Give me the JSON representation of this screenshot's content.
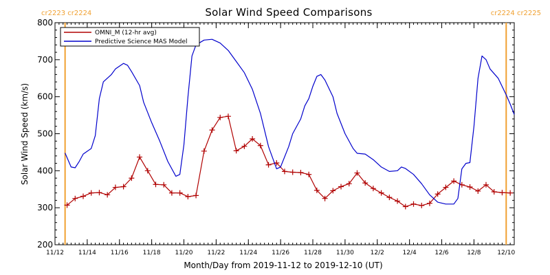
{
  "chart_data": {
    "type": "line",
    "title": "Solar Wind Speed Comparisons",
    "xlabel": "Month/Day from 2019-11-12 to 2019-12-10 (UT)",
    "ylabel": "Solar Wind Speed (km/s)",
    "x_unit": "date",
    "xlim": [
      "2019-11-12",
      "2019-12-10T12:00"
    ],
    "ylim": [
      200,
      800
    ],
    "x_ticks": [
      {
        "label": "11/12",
        "date": "2019-11-12"
      },
      {
        "label": "11/14",
        "date": "2019-11-14"
      },
      {
        "label": "11/16",
        "date": "2019-11-16"
      },
      {
        "label": "11/18",
        "date": "2019-11-18"
      },
      {
        "label": "11/20",
        "date": "2019-11-20"
      },
      {
        "label": "11/22",
        "date": "2019-11-22"
      },
      {
        "label": "11/24",
        "date": "2019-11-24"
      },
      {
        "label": "11/26",
        "date": "2019-11-26"
      },
      {
        "label": "11/28",
        "date": "2019-11-28"
      },
      {
        "label": "11/30",
        "date": "2019-11-30"
      },
      {
        "label": "12/2",
        "date": "2019-12-02"
      },
      {
        "label": "12/4",
        "date": "2019-12-04"
      },
      {
        "label": "12/6",
        "date": "2019-12-06"
      },
      {
        "label": "12/8",
        "date": "2019-12-08"
      },
      {
        "label": "12/10",
        "date": "2019-12-10"
      }
    ],
    "y_ticks": [
      200,
      300,
      400,
      500,
      600,
      700,
      800
    ],
    "grid": false,
    "legend_position": "top-left",
    "markers": [
      {
        "label": "cr2223 cr2224",
        "date": "2019-11-12T15:00",
        "color": "#f0a030",
        "label_side": "left"
      },
      {
        "label": "cr2224 cr2225",
        "date": "2019-12-10T00:00",
        "color": "#f0a030",
        "label_side": "right"
      }
    ],
    "series": [
      {
        "name": "OMNI_M (12-hr avg)",
        "color": "#b00000",
        "marker": "+",
        "points": [
          [
            "2019-11-12T18:00",
            307
          ],
          [
            "2019-11-13T06:00",
            325
          ],
          [
            "2019-11-13T18:00",
            331
          ],
          [
            "2019-11-14T06:00",
            340
          ],
          [
            "2019-11-14T18:00",
            341
          ],
          [
            "2019-11-15T06:00",
            335
          ],
          [
            "2019-11-15T18:00",
            355
          ],
          [
            "2019-11-16T06:00",
            357
          ],
          [
            "2019-11-16T18:00",
            380
          ],
          [
            "2019-11-17T06:00",
            437
          ],
          [
            "2019-11-17T18:00",
            400
          ],
          [
            "2019-11-18T06:00",
            363
          ],
          [
            "2019-11-18T18:00",
            362
          ],
          [
            "2019-11-19T06:00",
            340
          ],
          [
            "2019-11-19T18:00",
            340
          ],
          [
            "2019-11-20T06:00",
            330
          ],
          [
            "2019-11-20T18:00",
            333
          ],
          [
            "2019-11-21T06:00",
            453
          ],
          [
            "2019-11-21T18:00",
            510
          ],
          [
            "2019-11-22T06:00",
            544
          ],
          [
            "2019-11-22T18:00",
            547
          ],
          [
            "2019-11-23T06:00",
            454
          ],
          [
            "2019-11-23T18:00",
            466
          ],
          [
            "2019-11-24T06:00",
            486
          ],
          [
            "2019-11-24T18:00",
            468
          ],
          [
            "2019-11-25T06:00",
            416
          ],
          [
            "2019-11-25T18:00",
            421
          ],
          [
            "2019-11-26T06:00",
            398
          ],
          [
            "2019-11-26T18:00",
            396
          ],
          [
            "2019-11-27T06:00",
            395
          ],
          [
            "2019-11-27T18:00",
            390
          ],
          [
            "2019-11-28T06:00",
            347
          ],
          [
            "2019-11-28T18:00",
            325
          ],
          [
            "2019-11-29T06:00",
            346
          ],
          [
            "2019-11-29T18:00",
            357
          ],
          [
            "2019-11-30T06:00",
            365
          ],
          [
            "2019-11-30T18:00",
            394
          ],
          [
            "2019-12-01T06:00",
            367
          ],
          [
            "2019-12-01T18:00",
            352
          ],
          [
            "2019-12-02T06:00",
            340
          ],
          [
            "2019-12-02T18:00",
            328
          ],
          [
            "2019-12-03T06:00",
            318
          ],
          [
            "2019-12-03T18:00",
            303
          ],
          [
            "2019-12-04T06:00",
            310
          ],
          [
            "2019-12-04T18:00",
            306
          ],
          [
            "2019-12-05T06:00",
            312
          ],
          [
            "2019-12-05T18:00",
            337
          ],
          [
            "2019-12-06T06:00",
            355
          ],
          [
            "2019-12-06T18:00",
            372
          ],
          [
            "2019-12-07T06:00",
            362
          ],
          [
            "2019-12-07T18:00",
            356
          ],
          [
            "2019-12-08T06:00",
            345
          ],
          [
            "2019-12-08T18:00",
            362
          ],
          [
            "2019-12-09T06:00",
            343
          ],
          [
            "2019-12-09T18:00",
            341
          ],
          [
            "2019-12-10T06:00",
            340
          ]
        ]
      },
      {
        "name": "Predictive Science MAS Model",
        "color": "#0000cc",
        "marker": "none",
        "points": [
          [
            "2019-11-12T15:00",
            448
          ],
          [
            "2019-11-13T00:00",
            410
          ],
          [
            "2019-11-13T06:00",
            408
          ],
          [
            "2019-11-13T12:00",
            425
          ],
          [
            "2019-11-13T18:00",
            445
          ],
          [
            "2019-11-14T06:00",
            460
          ],
          [
            "2019-11-14T12:00",
            495
          ],
          [
            "2019-11-14T18:00",
            595
          ],
          [
            "2019-11-15T00:00",
            640
          ],
          [
            "2019-11-15T12:00",
            660
          ],
          [
            "2019-11-15T18:00",
            675
          ],
          [
            "2019-11-16T06:00",
            690
          ],
          [
            "2019-11-16T12:00",
            685
          ],
          [
            "2019-11-16T18:00",
            668
          ],
          [
            "2019-11-17T06:00",
            630
          ],
          [
            "2019-11-17T12:00",
            585
          ],
          [
            "2019-11-18T00:00",
            530
          ],
          [
            "2019-11-18T12:00",
            480
          ],
          [
            "2019-11-19T00:00",
            425
          ],
          [
            "2019-11-19T12:00",
            385
          ],
          [
            "2019-11-19T18:00",
            390
          ],
          [
            "2019-11-20T00:00",
            470
          ],
          [
            "2019-11-20T06:00",
            600
          ],
          [
            "2019-11-20T12:00",
            710
          ],
          [
            "2019-11-20T18:00",
            740
          ],
          [
            "2019-11-21T06:00",
            753
          ],
          [
            "2019-11-21T18:00",
            755
          ],
          [
            "2019-11-22T06:00",
            745
          ],
          [
            "2019-11-22T18:00",
            725
          ],
          [
            "2019-11-23T06:00",
            695
          ],
          [
            "2019-11-23T18:00",
            665
          ],
          [
            "2019-11-24T06:00",
            620
          ],
          [
            "2019-11-24T18:00",
            555
          ],
          [
            "2019-11-25T06:00",
            465
          ],
          [
            "2019-11-25T18:00",
            405
          ],
          [
            "2019-11-26T00:00",
            410
          ],
          [
            "2019-11-26T12:00",
            465
          ],
          [
            "2019-11-26T18:00",
            500
          ],
          [
            "2019-11-27T06:00",
            540
          ],
          [
            "2019-11-27T12:00",
            575
          ],
          [
            "2019-11-27T18:00",
            595
          ],
          [
            "2019-11-28T00:00",
            628
          ],
          [
            "2019-11-28T06:00",
            655
          ],
          [
            "2019-11-28T12:00",
            660
          ],
          [
            "2019-11-28T18:00",
            645
          ],
          [
            "2019-11-29T06:00",
            600
          ],
          [
            "2019-11-29T12:00",
            555
          ],
          [
            "2019-11-30T00:00",
            500
          ],
          [
            "2019-11-30T12:00",
            460
          ],
          [
            "2019-11-30T18:00",
            447
          ],
          [
            "2019-12-01T06:00",
            445
          ],
          [
            "2019-12-01T18:00",
            430
          ],
          [
            "2019-12-02T06:00",
            410
          ],
          [
            "2019-12-02T18:00",
            398
          ],
          [
            "2019-12-03T06:00",
            400
          ],
          [
            "2019-12-03T12:00",
            410
          ],
          [
            "2019-12-03T18:00",
            406
          ],
          [
            "2019-12-04T06:00",
            390
          ],
          [
            "2019-12-04T18:00",
            365
          ],
          [
            "2019-12-05T06:00",
            335
          ],
          [
            "2019-12-05T18:00",
            315
          ],
          [
            "2019-12-06T06:00",
            310
          ],
          [
            "2019-12-06T18:00",
            310
          ],
          [
            "2019-12-07T00:00",
            325
          ],
          [
            "2019-12-07T06:00",
            405
          ],
          [
            "2019-12-07T12:00",
            420
          ],
          [
            "2019-12-07T18:00",
            422
          ],
          [
            "2019-12-08T00:00",
            520
          ],
          [
            "2019-12-08T06:00",
            650
          ],
          [
            "2019-12-08T12:00",
            710
          ],
          [
            "2019-12-08T18:00",
            700
          ],
          [
            "2019-12-09T00:00",
            675
          ],
          [
            "2019-12-09T12:00",
            650
          ],
          [
            "2019-12-10T00:00",
            605
          ],
          [
            "2019-12-10T06:00",
            580
          ],
          [
            "2019-12-10T12:00",
            552
          ]
        ]
      }
    ]
  }
}
